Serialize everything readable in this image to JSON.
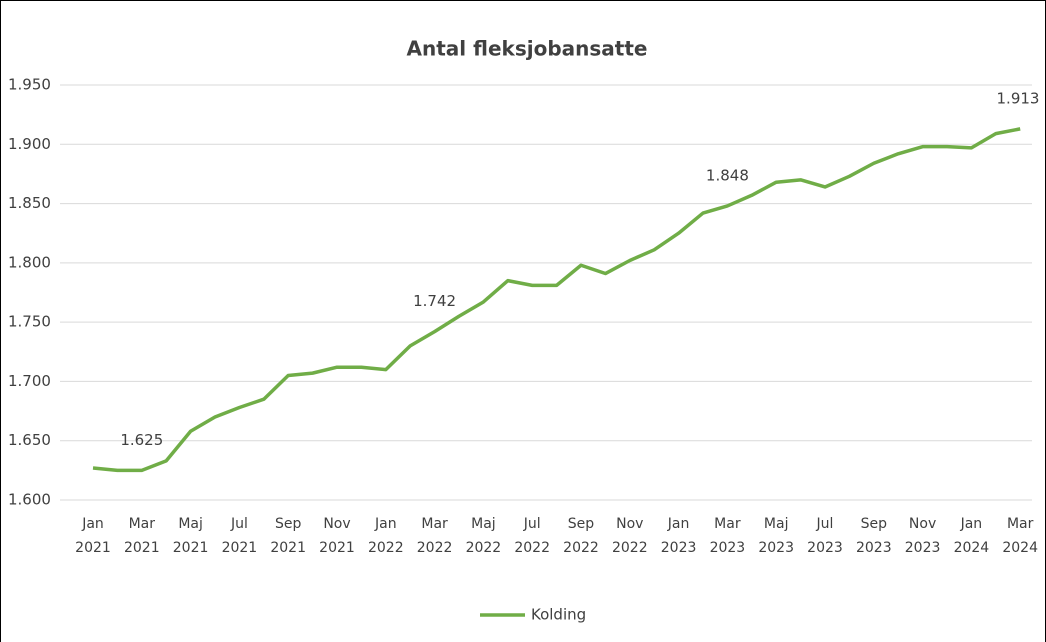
{
  "chart_data": {
    "type": "line",
    "title": "Antal fleksjobansatte",
    "categories": [
      "Jan 2021",
      null,
      "Mar 2021",
      null,
      "Maj 2021",
      null,
      "Jul 2021",
      null,
      "Sep 2021",
      null,
      "Nov 2021",
      null,
      "Jan 2022",
      null,
      "Mar 2022",
      null,
      "Maj 2022",
      null,
      "Jul 2022",
      null,
      "Sep 2022",
      null,
      "Nov 2022",
      null,
      "Jan 2023",
      null,
      "Mar 2023",
      null,
      "Maj 2023",
      null,
      "Jul 2023",
      null,
      "Sep 2023",
      null,
      "Nov 2023",
      null,
      "Jan 2024",
      null,
      "Mar 2024"
    ],
    "series": [
      {
        "name": "Kolding",
        "color": "#70ad47",
        "values": [
          1627,
          1625,
          1625,
          1633,
          1658,
          1670,
          1678,
          1685,
          1705,
          1707,
          1712,
          1712,
          1710,
          1730,
          1742,
          1755,
          1767,
          1785,
          1781,
          1781,
          1798,
          1791,
          1802,
          1811,
          1825,
          1842,
          1848,
          1857,
          1868,
          1870,
          1864,
          1873,
          1884,
          1892,
          1898,
          1898,
          1897,
          1909,
          1913
        ],
        "value_labels": [
          null,
          null,
          "1.625",
          null,
          null,
          null,
          null,
          null,
          null,
          null,
          null,
          null,
          null,
          null,
          "1.742",
          null,
          null,
          null,
          null,
          null,
          null,
          null,
          null,
          null,
          null,
          null,
          "1.848",
          null,
          null,
          null,
          null,
          null,
          null,
          null,
          null,
          null,
          null,
          null,
          "1.913"
        ]
      }
    ],
    "ylim": [
      1600,
      1950
    ],
    "yticks": [
      {
        "value": 1600,
        "label": "1.600"
      },
      {
        "value": 1650,
        "label": "1.650"
      },
      {
        "value": 1700,
        "label": "1.700"
      },
      {
        "value": 1750,
        "label": "1.750"
      },
      {
        "value": 1800,
        "label": "1.800"
      },
      {
        "value": 1850,
        "label": "1.850"
      },
      {
        "value": 1900,
        "label": "1.900"
      },
      {
        "value": 1950,
        "label": "1.950"
      }
    ],
    "grid": true,
    "legend": "bottom"
  }
}
